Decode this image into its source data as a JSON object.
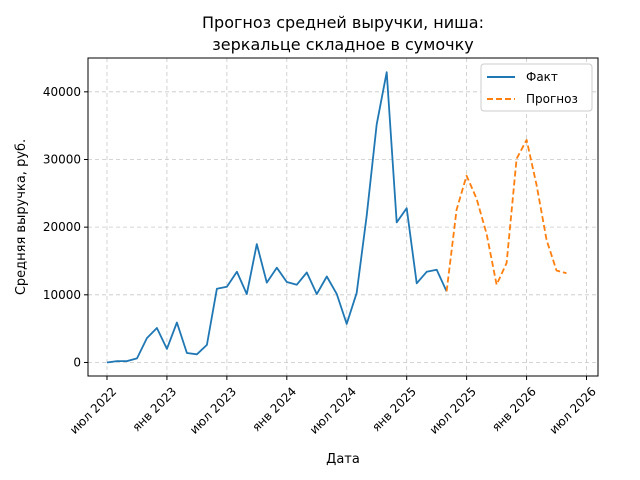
{
  "chart_data": {
    "type": "line",
    "title_lines": [
      "Прогноз средней выручки, ниша:",
      "зеркальце складное в сумочку"
    ],
    "xlabel": "Дата",
    "ylabel": "Средняя выручка, руб.",
    "ylim": [
      -2000,
      45000
    ],
    "xlim": [
      "2022-05",
      "2026-08"
    ],
    "y_ticks": [
      0,
      10000,
      20000,
      30000,
      40000
    ],
    "x_ticks": [
      {
        "date": "2022-07",
        "label": "июл 2022"
      },
      {
        "date": "2023-01",
        "label": "янв 2023"
      },
      {
        "date": "2023-07",
        "label": "июл 2023"
      },
      {
        "date": "2024-01",
        "label": "янв 2024"
      },
      {
        "date": "2024-07",
        "label": "июл 2024"
      },
      {
        "date": "2025-01",
        "label": "янв 2025"
      },
      {
        "date": "2025-07",
        "label": "июл 2025"
      },
      {
        "date": "2026-01",
        "label": "янв 2026"
      },
      {
        "date": "2026-07",
        "label": "июл 2026"
      }
    ],
    "grid": true,
    "legend_position": "top-right",
    "series": [
      {
        "name": "Факт",
        "color": "#1f77b4",
        "style": "solid",
        "points": [
          [
            "2022-07",
            0
          ],
          [
            "2022-08",
            200
          ],
          [
            "2022-09",
            200
          ],
          [
            "2022-10",
            600
          ],
          [
            "2022-11",
            3600
          ],
          [
            "2022-12",
            5100
          ],
          [
            "2023-01",
            2000
          ],
          [
            "2023-02",
            5900
          ],
          [
            "2023-03",
            1400
          ],
          [
            "2023-04",
            1200
          ],
          [
            "2023-05",
            2600
          ],
          [
            "2023-06",
            10900
          ],
          [
            "2023-07",
            11200
          ],
          [
            "2023-08",
            13400
          ],
          [
            "2023-09",
            10100
          ],
          [
            "2023-10",
            17500
          ],
          [
            "2023-11",
            11800
          ],
          [
            "2023-12",
            14000
          ],
          [
            "2024-01",
            11900
          ],
          [
            "2024-02",
            11500
          ],
          [
            "2024-03",
            13300
          ],
          [
            "2024-04",
            10100
          ],
          [
            "2024-05",
            12700
          ],
          [
            "2024-06",
            10100
          ],
          [
            "2024-07",
            5700
          ],
          [
            "2024-08",
            10300
          ],
          [
            "2024-09",
            21700
          ],
          [
            "2024-10",
            35200
          ],
          [
            "2024-11",
            42900
          ],
          [
            "2024-12",
            20700
          ],
          [
            "2025-01",
            22800
          ],
          [
            "2025-02",
            11700
          ],
          [
            "2025-03",
            13400
          ],
          [
            "2025-04",
            13700
          ],
          [
            "2025-05",
            10500
          ]
        ]
      },
      {
        "name": "Прогноз",
        "color": "#ff7f0e",
        "style": "dashed",
        "points": [
          [
            "2025-05",
            10500
          ],
          [
            "2025-06",
            22600
          ],
          [
            "2025-07",
            27600
          ],
          [
            "2025-08",
            24200
          ],
          [
            "2025-09",
            19000
          ],
          [
            "2025-10",
            11500
          ],
          [
            "2025-11",
            14700
          ],
          [
            "2025-12",
            30100
          ],
          [
            "2026-01",
            32900
          ],
          [
            "2026-02",
            26200
          ],
          [
            "2026-03",
            18100
          ],
          [
            "2026-04",
            13600
          ],
          [
            "2026-05",
            13200
          ]
        ]
      }
    ]
  }
}
